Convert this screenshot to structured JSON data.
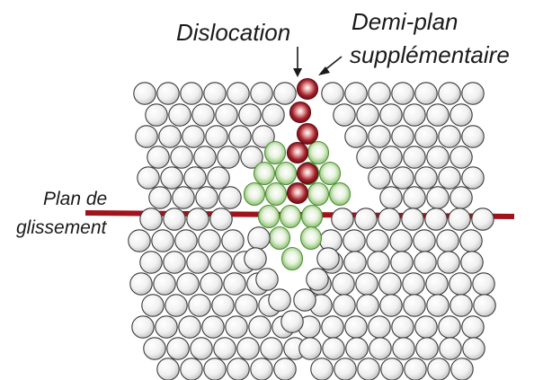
{
  "labels": {
    "dislocation": "Dislocation",
    "half_plane_line1": "Demi-plan",
    "half_plane_line2": "supplémentaire",
    "slip_plane_line1": "Plan de",
    "slip_plane_line2": "glissement"
  },
  "colors": {
    "atom_normal": "#f2f2f2",
    "atom_strained": "#8cc36e",
    "atom_extra_half_plane": "#9b1c24",
    "slip_plane_line": "#a0121c",
    "outline": "#3a3a3a"
  }
}
